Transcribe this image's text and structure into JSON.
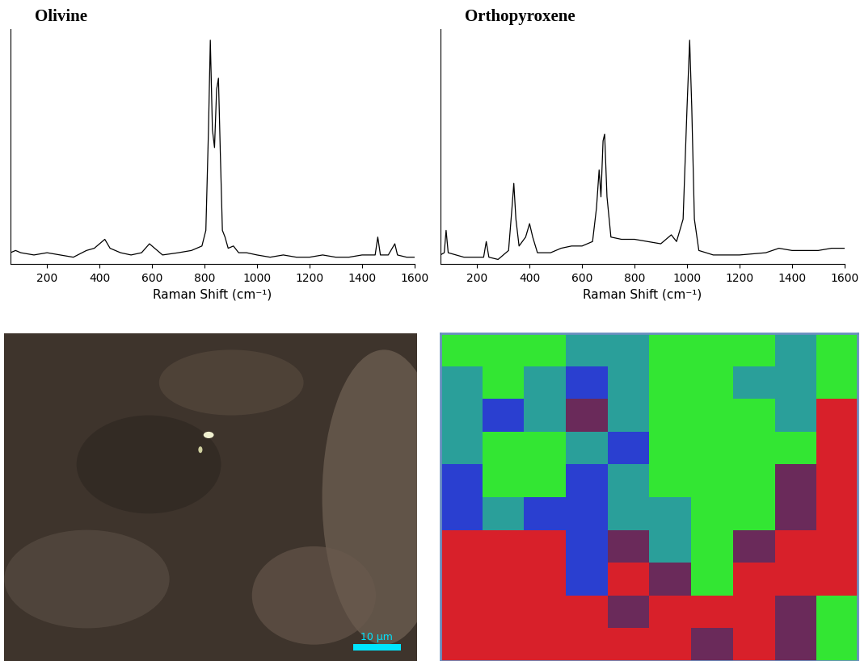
{
  "chart_data": [
    {
      "type": "line",
      "title": "Olivine",
      "x_label": "Raman Shift (cm⁻¹)",
      "color": "#000000",
      "x": [
        60,
        80,
        100,
        150,
        200,
        250,
        300,
        350,
        380,
        400,
        420,
        440,
        480,
        520,
        560,
        590,
        610,
        640,
        700,
        750,
        790,
        805,
        815,
        822,
        830,
        838,
        846,
        853,
        860,
        868,
        878,
        890,
        910,
        930,
        960,
        1000,
        1050,
        1100,
        1150,
        1200,
        1250,
        1300,
        1350,
        1400,
        1450,
        1460,
        1470,
        1500,
        1525,
        1535,
        1570,
        1600
      ],
      "values": [
        0.05,
        0.06,
        0.05,
        0.04,
        0.05,
        0.04,
        0.03,
        0.06,
        0.07,
        0.09,
        0.11,
        0.07,
        0.05,
        0.04,
        0.05,
        0.09,
        0.07,
        0.04,
        0.05,
        0.06,
        0.08,
        0.15,
        0.6,
        1.0,
        0.6,
        0.52,
        0.78,
        0.83,
        0.5,
        0.15,
        0.12,
        0.07,
        0.08,
        0.05,
        0.05,
        0.04,
        0.03,
        0.04,
        0.03,
        0.03,
        0.04,
        0.03,
        0.03,
        0.04,
        0.04,
        0.12,
        0.04,
        0.04,
        0.09,
        0.04,
        0.03,
        0.03
      ],
      "xlim": [
        60,
        1600
      ],
      "xticks": [
        200,
        400,
        600,
        800,
        1000,
        1200,
        1400,
        1600
      ],
      "ylim": [
        0,
        1.05
      ],
      "yticks": [],
      "tick_labels": "x"
    },
    {
      "type": "line",
      "title": "Orthopyroxene",
      "x_label": "Raman Shift (cm⁻¹)",
      "color": "#000000",
      "x": [
        60,
        75,
        82,
        90,
        150,
        200,
        225,
        235,
        245,
        280,
        320,
        333,
        340,
        348,
        360,
        385,
        400,
        412,
        430,
        480,
        520,
        560,
        600,
        640,
        655,
        665,
        672,
        680,
        686,
        695,
        710,
        750,
        800,
        850,
        900,
        940,
        960,
        985,
        1000,
        1010,
        1018,
        1028,
        1045,
        1100,
        1200,
        1300,
        1350,
        1400,
        1500,
        1550,
        1600
      ],
      "values": [
        0.04,
        0.05,
        0.15,
        0.05,
        0.03,
        0.03,
        0.03,
        0.1,
        0.03,
        0.02,
        0.06,
        0.25,
        0.36,
        0.2,
        0.08,
        0.12,
        0.18,
        0.12,
        0.05,
        0.05,
        0.07,
        0.08,
        0.08,
        0.1,
        0.25,
        0.42,
        0.3,
        0.55,
        0.58,
        0.3,
        0.12,
        0.11,
        0.11,
        0.1,
        0.09,
        0.13,
        0.1,
        0.2,
        0.7,
        1.0,
        0.7,
        0.2,
        0.06,
        0.04,
        0.04,
        0.05,
        0.07,
        0.06,
        0.06,
        0.07,
        0.07
      ],
      "xlim": [
        60,
        1600
      ],
      "xticks": [
        200,
        400,
        600,
        800,
        1000,
        1200,
        1400,
        1600
      ],
      "ylim": [
        0,
        1.05
      ],
      "yticks": [],
      "tick_labels": "x"
    },
    {
      "type": "image",
      "scale_bar": "10 µm",
      "color": "#00e5ff"
    },
    {
      "type": "heatmap",
      "tick_labels": false,
      "cells": [
        [
          "#33e633",
          "#33e633",
          "#33e633",
          "#2a9f9a",
          "#2a9f9a",
          "#33e633",
          "#33e633",
          "#33e633",
          "#2a9f9a",
          "#33e633"
        ],
        [
          "#2a9f9a",
          "#33e633",
          "#2a9f9a",
          "#2a3fd0",
          "#2a9f9a",
          "#33e633",
          "#33e633",
          "#2a9f9a",
          "#2a9f9a",
          "#33e633"
        ],
        [
          "#2a9f9a",
          "#2a3fd0",
          "#2a9f9a",
          "#6a2a5a",
          "#2a9f9a",
          "#33e633",
          "#33e633",
          "#33e633",
          "#2a9f9a",
          "#d8202a"
        ],
        [
          "#2a9f9a",
          "#33e633",
          "#33e633",
          "#2a9f9a",
          "#2a3fd0",
          "#33e633",
          "#33e633",
          "#33e633",
          "#33e633",
          "#d8202a"
        ],
        [
          "#2a3fd0",
          "#33e633",
          "#33e633",
          "#2a3fd0",
          "#2a9f9a",
          "#33e633",
          "#33e633",
          "#33e633",
          "#6a2a5a",
          "#d8202a"
        ],
        [
          "#2a3fd0",
          "#2a9f9a",
          "#2a3fd0",
          "#2a3fd0",
          "#2a9f9a",
          "#2a9f9a",
          "#33e633",
          "#33e633",
          "#6a2a5a",
          "#d8202a"
        ],
        [
          "#d8202a",
          "#d8202a",
          "#d8202a",
          "#2a3fd0",
          "#6a2a5a",
          "#2a9f9a",
          "#33e633",
          "#6a2a5a",
          "#d8202a",
          "#d8202a"
        ],
        [
          "#d8202a",
          "#d8202a",
          "#d8202a",
          "#2a3fd0",
          "#d8202a",
          "#6a2a5a",
          "#33e633",
          "#d8202a",
          "#d8202a",
          "#d8202a"
        ],
        [
          "#d8202a",
          "#d8202a",
          "#d8202a",
          "#d8202a",
          "#6a2a5a",
          "#d8202a",
          "#d8202a",
          "#d8202a",
          "#6a2a5a",
          "#33e633"
        ],
        [
          "#d8202a",
          "#d8202a",
          "#d8202a",
          "#d8202a",
          "#d8202a",
          "#d8202a",
          "#6a2a5a",
          "#d8202a",
          "#6a2a5a",
          "#33e633"
        ]
      ]
    }
  ]
}
